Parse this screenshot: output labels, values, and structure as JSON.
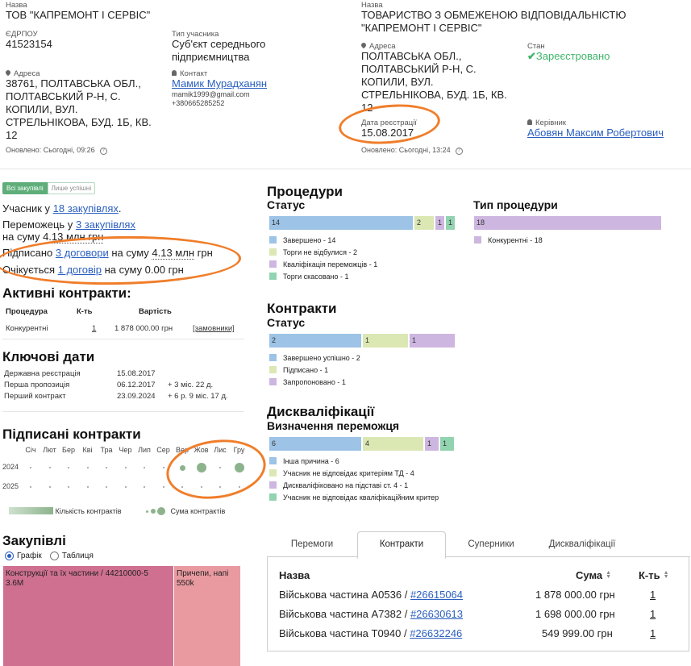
{
  "left_card": {
    "name_label": "Назва",
    "name": "ТОВ \"КАПРЕМОНТ І СЕРВІС\"",
    "edrpou_label": "ЄДРПОУ",
    "edrpou": "41523154",
    "participant_type_label": "Тип учасника",
    "participant_type": "Суб'єкт середнього підприємництва",
    "address_label": "Адреса",
    "address": "38761, ПОЛТАВСЬКА ОБЛ., ПОЛТАВСЬКИЙ Р-Н, С. КОПИЛИ, ВУЛ. СТРЕЛЬНІКОВА, БУД. 1Б, КВ. 12",
    "contact_label": "Контакт",
    "contact_name": "Мамик Мурадханян",
    "contact_email": "mamik1999@gmail.com",
    "contact_phone": "+380665285252",
    "updated": "Оновлено: Сьогодні, 09:26"
  },
  "right_card": {
    "name_label": "Назва",
    "name": "ТОВАРИСТВО З ОБМЕЖЕНОЮ ВІДПОВІДАЛЬНІСТЮ \"КАПРЕМОНТ І СЕРВІС\"",
    "address_label": "Адреса",
    "address": "ПОЛТАВСЬКА ОБЛ., ПОЛТАВСЬКИЙ Р-Н, С. КОПИЛИ, ВУЛ. СТРЕЛЬНІКОВА, БУД. 1Б, КВ. 12",
    "status_label": "Стан",
    "status": "Зареєстровано",
    "reg_date_label": "Дата реєстрації",
    "reg_date": "15.08.2017",
    "head_label": "Керівник",
    "head_name": "Абовян Максим Робертович",
    "updated": "Оновлено: Сьогодні, 13:24"
  },
  "filters": {
    "all": "Всі закупівлі",
    "success": "Лише успішні"
  },
  "summary": {
    "l1_pre": "Учасник у ",
    "l1_link": "18 закупівлях",
    "l1_post": ".",
    "l2_pre": "Переможець у ",
    "l2_link": "3 закупівлях",
    "l3_pre": "на суму ",
    "l3_val": "4.13 млн грн",
    "l4_pre": "Підписано ",
    "l4_link": "3 договори",
    "l4_mid": " на суму ",
    "l4_val": "4.13 млн",
    "l4_post": " грн",
    "l5_pre": "Очікується ",
    "l5_link": "1 договір",
    "l5_post": " на суму 0.00 грн"
  },
  "active_contracts": {
    "title": "Активні контракти:",
    "headers": [
      "Процедура",
      "К-ть",
      "Вартість"
    ],
    "row": {
      "procedure": "Конкурентні",
      "count": "1",
      "value": "1 878 000.00 грн",
      "link": "[замовники]"
    }
  },
  "key_dates": {
    "title": "Ключові дати",
    "rows": [
      {
        "label": "Державна реєстрація",
        "date": "15.08.2017",
        "delta": ""
      },
      {
        "label": "Перша пропозиція",
        "date": "06.12.2017",
        "delta": "+ 3 міс. 22 д."
      },
      {
        "label": "Перший контракт",
        "date": "23.09.2024",
        "delta": "+ 6 р. 9 міс. 17 д."
      }
    ]
  },
  "signed_contracts": {
    "title": "Підписані контракти",
    "months": [
      "Січ",
      "Лют",
      "Бер",
      "Кві",
      "Тра",
      "Чер",
      "Лип",
      "Сер",
      "Вер",
      "Жов",
      "Лис",
      "Гру"
    ],
    "years": [
      "2024",
      "2025"
    ],
    "dots_2024": [
      0,
      0,
      0,
      0,
      0,
      0,
      0,
      0,
      1,
      2,
      0,
      2
    ],
    "legend_count": "Кількість контрактів",
    "legend_sum": "Сума контрактів"
  },
  "purchases": {
    "title": "Закупівлі",
    "radio_chart": "Графік",
    "radio_table": "Таблиця",
    "treemap": [
      {
        "label": "Конструкції та їх частини / 44210000-5",
        "value": "3.6M",
        "color": "#cf7090"
      },
      {
        "label": "Причепи, напі",
        "value": "550k",
        "color": "#e89aa0"
      }
    ]
  },
  "procedures": {
    "title": "Процедури",
    "status_title": "Статус",
    "type_title": "Тип процедури",
    "status_bar": [
      {
        "label": "Завершено",
        "value": 14,
        "color": "#9dc3e6"
      },
      {
        "label": "Торги не відбулися",
        "value": 2,
        "color": "#dbe8b4"
      },
      {
        "label": "Кваліфікація переможців",
        "value": 1,
        "color": "#cdb6e0"
      },
      {
        "label": "Торги скасовано",
        "value": 1,
        "color": "#92d3b0"
      }
    ],
    "legend_status": [
      "Завершено - 14",
      "Торги не відбулися - 2",
      "Кваліфікація переможців - 1",
      "Торги скасовано - 1"
    ],
    "type_bar": [
      {
        "label": "Конкурентні",
        "value": 18,
        "color": "#cdb6e0"
      }
    ],
    "legend_type": [
      "Конкурентні - 18"
    ]
  },
  "contracts": {
    "title": "Контракти",
    "status_title": "Статус",
    "bar": [
      {
        "label": "Завершено успішно",
        "value": 2,
        "color": "#9dc3e6"
      },
      {
        "label": "Підписано",
        "value": 1,
        "color": "#dbe8b4"
      },
      {
        "label": "Запропоновано",
        "value": 1,
        "color": "#cdb6e0"
      }
    ],
    "legend": [
      "Завершено успішно - 2",
      "Підписано - 1",
      "Запропоновано - 1"
    ]
  },
  "disqual": {
    "title": "Дискваліфікації",
    "subtitle": "Визначення переможця",
    "bar": [
      {
        "label": "Інша причина",
        "value": 6,
        "color": "#9dc3e6"
      },
      {
        "label": "Учасник не відповідає критеріям ТД",
        "value": 4,
        "color": "#dbe8b4"
      },
      {
        "label": "Дискваліфіковано на підставі ст. 4",
        "value": 1,
        "color": "#cdb6e0"
      },
      {
        "label": "Учасник не відповідає кваліфікаційним критер",
        "value": 1,
        "color": "#92d3b0"
      }
    ],
    "legend": [
      "Інша причина - 6",
      "Учасник не відповідає критеріям ТД - 4",
      "Дискваліфіковано на підставі ст. 4 - 1",
      "Учасник не відповідає кваліфікаційним критер"
    ]
  },
  "tabs": [
    "Перемоги",
    "Контракти",
    "Суперники",
    "Дискваліфікації"
  ],
  "contracts_table": {
    "headers": [
      "Назва",
      "Сума",
      "К-ть"
    ],
    "rows": [
      {
        "name": "Військова частина А0536 / ",
        "link": "#26615064",
        "sum": "1 878 000.00 грн",
        "count": "1"
      },
      {
        "name": "Військова частина А7382 / ",
        "link": "#26630613",
        "sum": "1 698 000.00 грн",
        "count": "1"
      },
      {
        "name": "Військова частина Т0940 / ",
        "link": "#26632246",
        "sum": "549 999.00 грн",
        "count": "1"
      }
    ]
  },
  "colors": {
    "accent": "#2a5fbf",
    "annotation": "#f07d2a",
    "status_ok": "#3fb56a"
  }
}
